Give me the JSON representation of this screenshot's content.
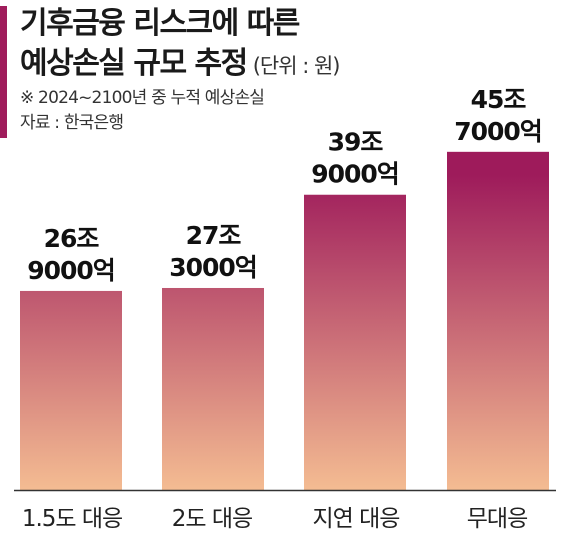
{
  "chart_data": {
    "type": "bar",
    "title_line1": "기후금융 리스크에 따른",
    "title_line2": "예상손실 규모 추정",
    "unit": "(단위 : 원)",
    "note": "※ 2024~2100년 중 누적 예상손실",
    "source": "자료 : 한국은행",
    "categories": [
      "1.5도 대응",
      "2도 대응",
      "지연 대응",
      "무대응"
    ],
    "values": [
      269000,
      273000,
      399000,
      457000
    ],
    "value_labels": [
      [
        "26조",
        "9000억"
      ],
      [
        "27조",
        "3000억"
      ],
      [
        "39조",
        "9000억"
      ],
      [
        "45조",
        "7000억"
      ]
    ],
    "value_unit": "억원",
    "ylim": [
      0,
      500000
    ],
    "colors": {
      "accent": "#a01d5c",
      "bar_top": "#9e1b5b",
      "bar_bottom": "#f4bc92",
      "axis": "#333333"
    }
  }
}
